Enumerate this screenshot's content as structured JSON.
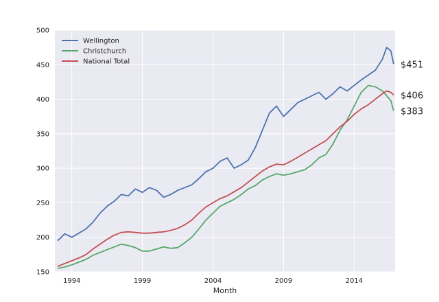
{
  "chart_data": {
    "type": "line",
    "title": "",
    "xlabel": "Month",
    "ylabel": "",
    "xlim": [
      1992.8,
      2016.9
    ],
    "ylim": [
      150,
      500
    ],
    "x_ticks": [
      {
        "value": 1994,
        "label": "1994"
      },
      {
        "value": 1999,
        "label": "1999"
      },
      {
        "value": 2004,
        "label": "2004"
      },
      {
        "value": 2009,
        "label": "2009"
      },
      {
        "value": 2014,
        "label": "2014"
      }
    ],
    "y_ticks": [
      150,
      200,
      250,
      300,
      350,
      400,
      450,
      500
    ],
    "grid": true,
    "legend_position": "top-left",
    "series": [
      {
        "name": "Wellington",
        "color": "#4c72b0",
        "points": [
          [
            1993.0,
            195
          ],
          [
            1993.5,
            205
          ],
          [
            1994.0,
            200
          ],
          [
            1994.5,
            206
          ],
          [
            1995.0,
            212
          ],
          [
            1995.5,
            222
          ],
          [
            1996.0,
            235
          ],
          [
            1996.5,
            245
          ],
          [
            1997.0,
            252
          ],
          [
            1997.5,
            262
          ],
          [
            1998.0,
            260
          ],
          [
            1998.5,
            270
          ],
          [
            1999.0,
            265
          ],
          [
            1999.5,
            272
          ],
          [
            2000.0,
            268
          ],
          [
            2000.5,
            258
          ],
          [
            2001.0,
            262
          ],
          [
            2001.5,
            268
          ],
          [
            2002.0,
            272
          ],
          [
            2002.5,
            276
          ],
          [
            2003.0,
            285
          ],
          [
            2003.5,
            295
          ],
          [
            2004.0,
            300
          ],
          [
            2004.5,
            310
          ],
          [
            2005.0,
            315
          ],
          [
            2005.5,
            300
          ],
          [
            2006.0,
            305
          ],
          [
            2006.5,
            312
          ],
          [
            2007.0,
            330
          ],
          [
            2007.5,
            355
          ],
          [
            2008.0,
            380
          ],
          [
            2008.5,
            390
          ],
          [
            2009.0,
            375
          ],
          [
            2009.5,
            385
          ],
          [
            2010.0,
            395
          ],
          [
            2010.5,
            400
          ],
          [
            2011.0,
            405
          ],
          [
            2011.5,
            410
          ],
          [
            2012.0,
            400
          ],
          [
            2012.5,
            408
          ],
          [
            2013.0,
            418
          ],
          [
            2013.5,
            412
          ],
          [
            2014.0,
            420
          ],
          [
            2014.5,
            428
          ],
          [
            2015.0,
            435
          ],
          [
            2015.5,
            442
          ],
          [
            2016.0,
            458
          ],
          [
            2016.3,
            475
          ],
          [
            2016.6,
            470
          ],
          [
            2016.8,
            451
          ]
        ]
      },
      {
        "name": "Christchurch",
        "color": "#55a868",
        "points": [
          [
            1993.0,
            155
          ],
          [
            1993.5,
            157
          ],
          [
            1994.0,
            160
          ],
          [
            1994.5,
            164
          ],
          [
            1995.0,
            168
          ],
          [
            1995.5,
            174
          ],
          [
            1996.0,
            178
          ],
          [
            1996.5,
            182
          ],
          [
            1997.0,
            186
          ],
          [
            1997.5,
            190
          ],
          [
            1998.0,
            188
          ],
          [
            1998.5,
            185
          ],
          [
            1999.0,
            180
          ],
          [
            1999.5,
            180
          ],
          [
            2000.0,
            183
          ],
          [
            2000.5,
            186
          ],
          [
            2001.0,
            184
          ],
          [
            2001.5,
            185
          ],
          [
            2002.0,
            192
          ],
          [
            2002.5,
            200
          ],
          [
            2003.0,
            212
          ],
          [
            2003.5,
            225
          ],
          [
            2004.0,
            235
          ],
          [
            2004.5,
            245
          ],
          [
            2005.0,
            250
          ],
          [
            2005.5,
            255
          ],
          [
            2006.0,
            262
          ],
          [
            2006.5,
            270
          ],
          [
            2007.0,
            275
          ],
          [
            2007.5,
            283
          ],
          [
            2008.0,
            288
          ],
          [
            2008.5,
            292
          ],
          [
            2009.0,
            290
          ],
          [
            2009.5,
            292
          ],
          [
            2010.0,
            295
          ],
          [
            2010.5,
            298
          ],
          [
            2011.0,
            305
          ],
          [
            2011.5,
            315
          ],
          [
            2012.0,
            320
          ],
          [
            2012.5,
            335
          ],
          [
            2013.0,
            355
          ],
          [
            2013.5,
            370
          ],
          [
            2014.0,
            390
          ],
          [
            2014.5,
            410
          ],
          [
            2015.0,
            420
          ],
          [
            2015.5,
            418
          ],
          [
            2016.0,
            412
          ],
          [
            2016.3,
            405
          ],
          [
            2016.6,
            398
          ],
          [
            2016.8,
            383
          ]
        ]
      },
      {
        "name": "National Total",
        "color": "#c44e52",
        "points": [
          [
            1993.0,
            158
          ],
          [
            1993.5,
            162
          ],
          [
            1994.0,
            166
          ],
          [
            1994.5,
            170
          ],
          [
            1995.0,
            175
          ],
          [
            1995.5,
            183
          ],
          [
            1996.0,
            190
          ],
          [
            1996.5,
            197
          ],
          [
            1997.0,
            203
          ],
          [
            1997.5,
            207
          ],
          [
            1998.0,
            208
          ],
          [
            1998.5,
            207
          ],
          [
            1999.0,
            206
          ],
          [
            1999.5,
            206
          ],
          [
            2000.0,
            207
          ],
          [
            2000.5,
            208
          ],
          [
            2001.0,
            210
          ],
          [
            2001.5,
            213
          ],
          [
            2002.0,
            218
          ],
          [
            2002.5,
            225
          ],
          [
            2003.0,
            235
          ],
          [
            2003.5,
            244
          ],
          [
            2004.0,
            250
          ],
          [
            2004.5,
            256
          ],
          [
            2005.0,
            260
          ],
          [
            2005.5,
            266
          ],
          [
            2006.0,
            272
          ],
          [
            2006.5,
            280
          ],
          [
            2007.0,
            288
          ],
          [
            2007.5,
            296
          ],
          [
            2008.0,
            302
          ],
          [
            2008.5,
            306
          ],
          [
            2009.0,
            305
          ],
          [
            2009.5,
            310
          ],
          [
            2010.0,
            316
          ],
          [
            2010.5,
            322
          ],
          [
            2011.0,
            328
          ],
          [
            2011.5,
            334
          ],
          [
            2012.0,
            340
          ],
          [
            2012.5,
            350
          ],
          [
            2013.0,
            360
          ],
          [
            2013.5,
            368
          ],
          [
            2014.0,
            378
          ],
          [
            2014.5,
            386
          ],
          [
            2015.0,
            392
          ],
          [
            2015.5,
            400
          ],
          [
            2016.0,
            408
          ],
          [
            2016.3,
            412
          ],
          [
            2016.6,
            410
          ],
          [
            2016.8,
            406
          ]
        ]
      }
    ],
    "end_labels": [
      {
        "series": "Wellington",
        "value": 451,
        "text": "$451"
      },
      {
        "series": "National Total",
        "value": 406,
        "text": "$406"
      },
      {
        "series": "Christchurch",
        "value": 383,
        "text": "$383"
      }
    ]
  }
}
